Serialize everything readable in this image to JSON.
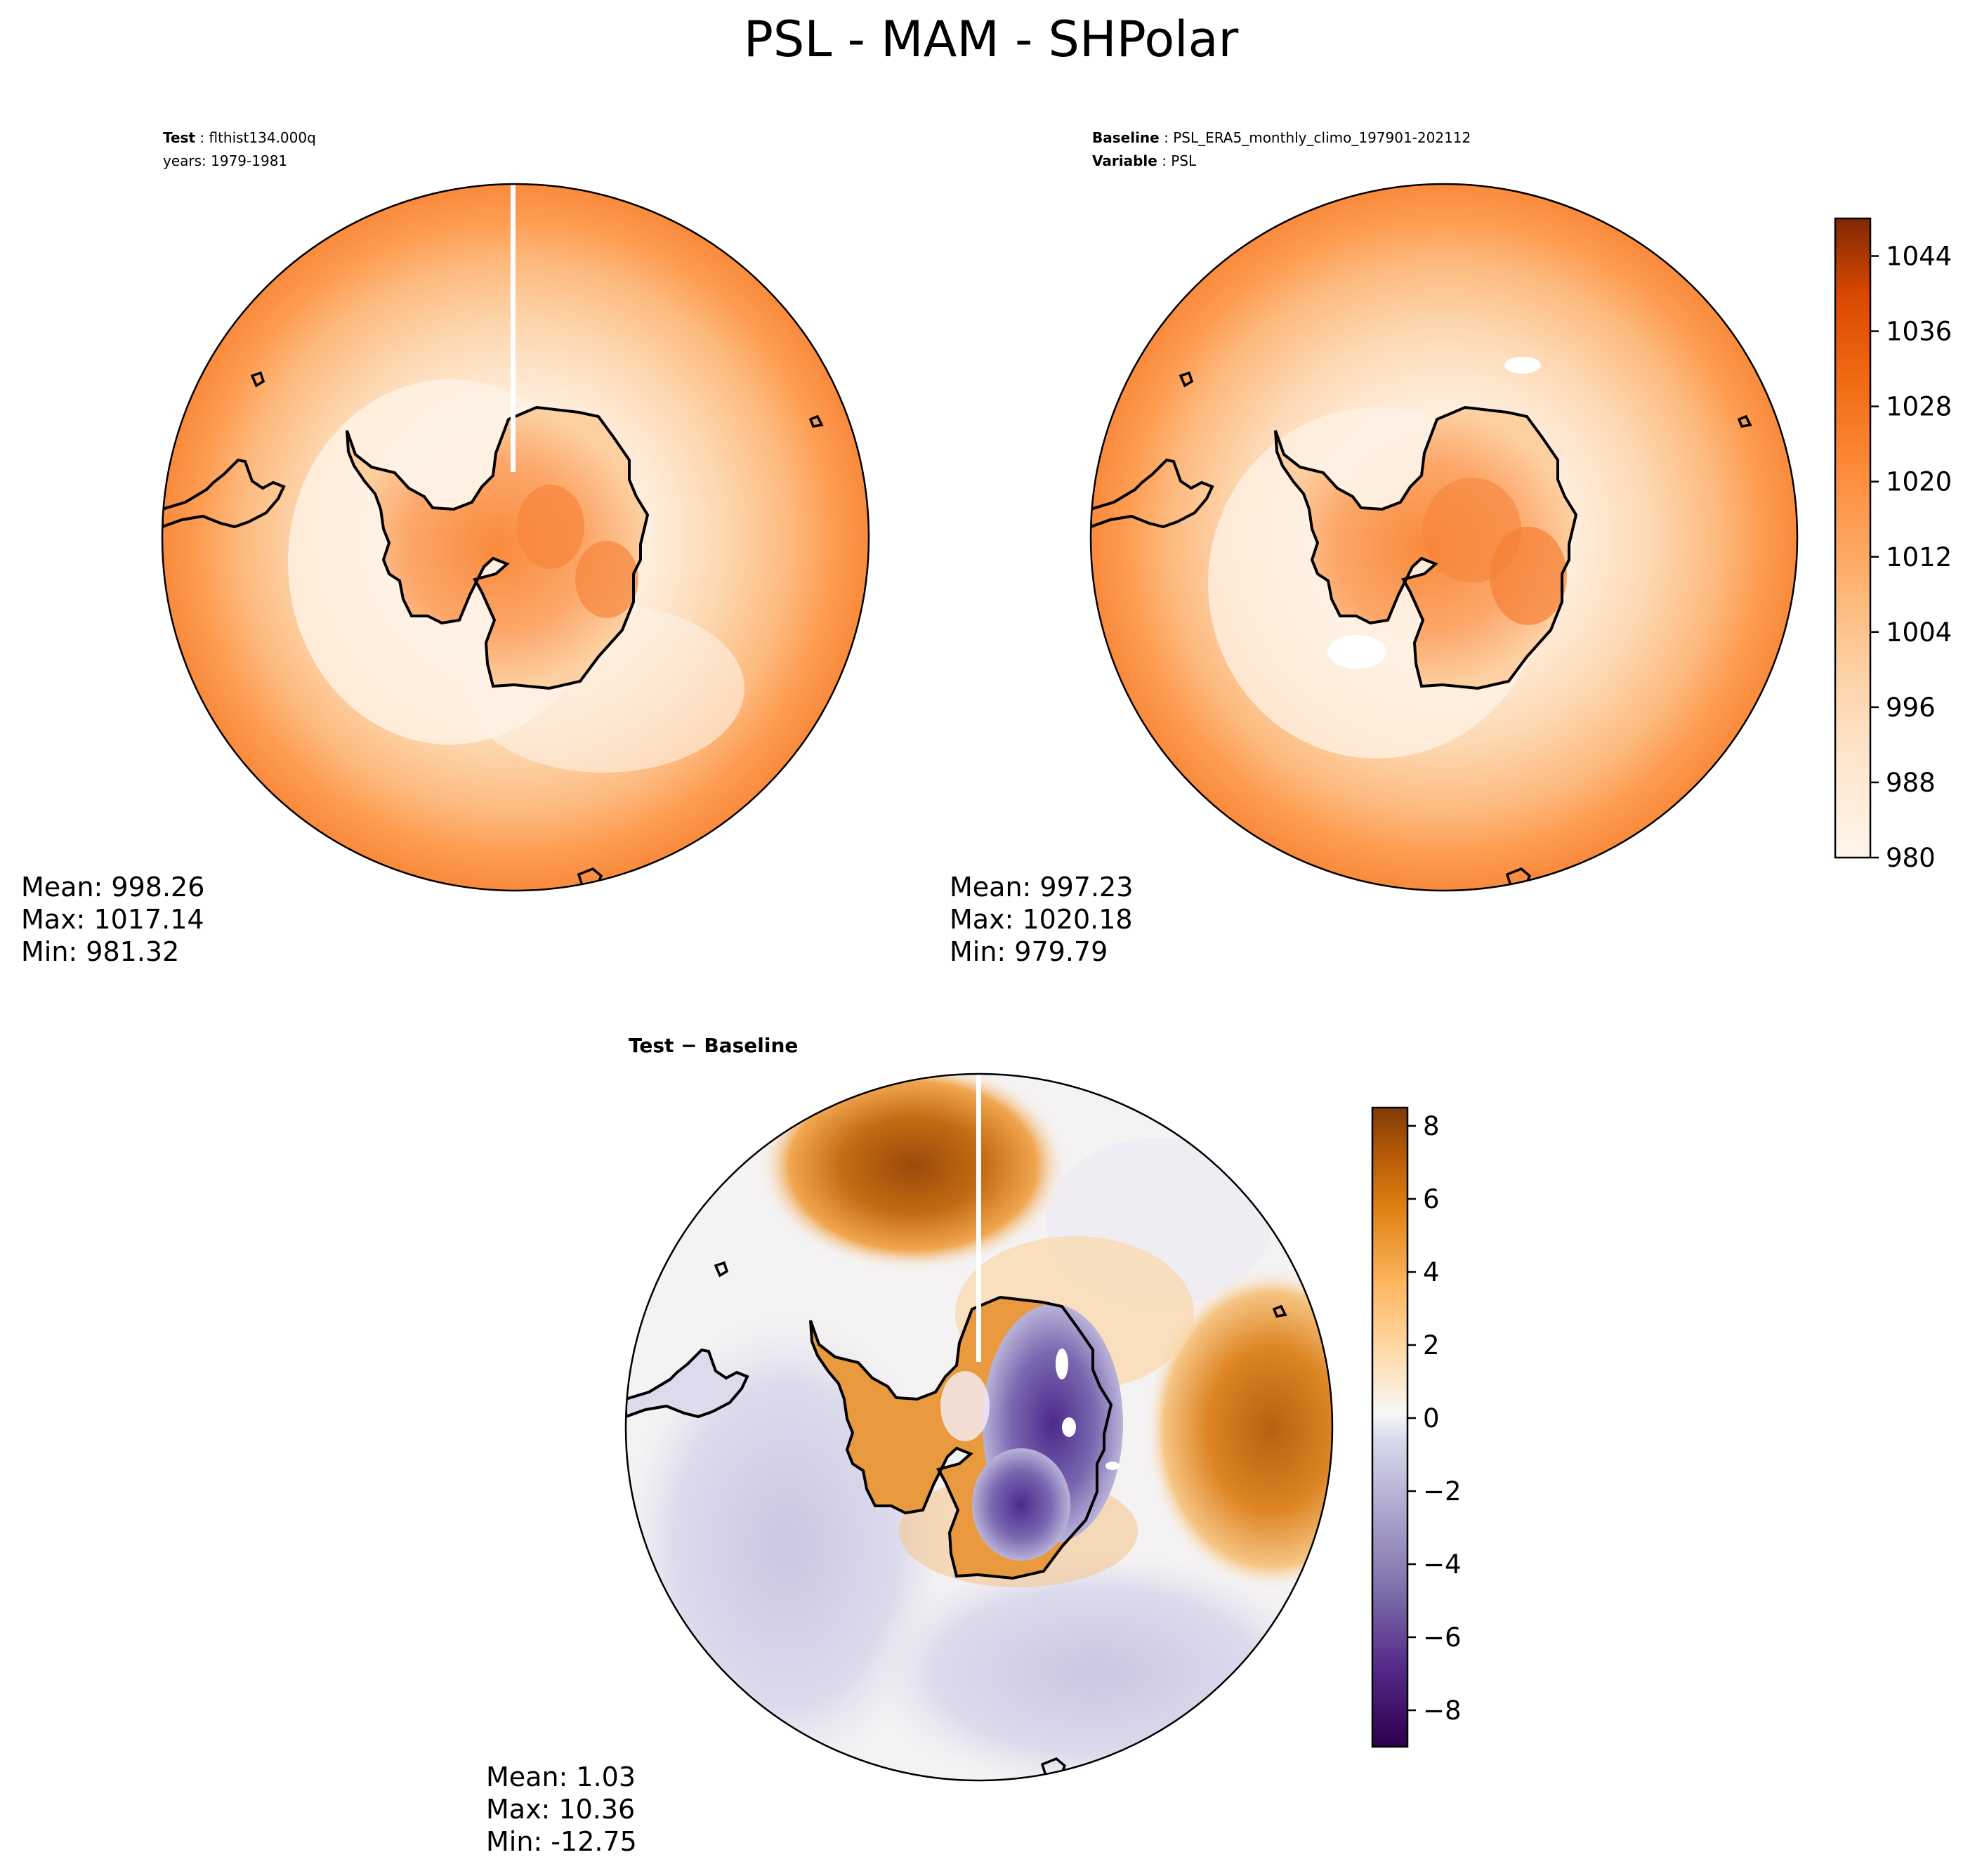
{
  "figure": {
    "title": "PSL - MAM - SHPolar"
  },
  "panels": {
    "test": {
      "label_bold": "Test",
      "label_sep": " : ",
      "label_value": "flthist134.000q",
      "line2": "years: 1979-1981",
      "stats": {
        "mean": "Mean: 998.26",
        "max": "Max: 1017.14",
        "min": "Min: 981.32"
      }
    },
    "baseline": {
      "label_bold": "Baseline",
      "label_sep": " : ",
      "label_value": "PSL_ERA5_monthly_climo_197901-202112",
      "line2_bold": "Variable",
      "line2_sep": " : ",
      "line2_value": "PSL",
      "stats": {
        "mean": "Mean: 997.23",
        "max": "Max: 1020.18",
        "min": "Min: 979.79"
      }
    },
    "diff": {
      "title": "Test − Baseline",
      "stats": {
        "mean": "Mean:  1.03",
        "max": "Max: 10.36",
        "min": "Min: -12.75"
      }
    }
  },
  "colorbars": {
    "absolute": {
      "ticks": [
        "980",
        "988",
        "996",
        "1004",
        "1012",
        "1020",
        "1028",
        "1036",
        "1044"
      ],
      "tick_values": [
        980,
        988,
        996,
        1004,
        1012,
        1020,
        1028,
        1036,
        1044
      ],
      "range": [
        980,
        1048
      ],
      "colormap": "Oranges",
      "color_low": "#fff5eb",
      "color_high": "#7f2704"
    },
    "difference": {
      "ticks": [
        "−8",
        "−6",
        "−4",
        "−2",
        "0",
        "2",
        "4",
        "6",
        "8"
      ],
      "tick_values": [
        -8,
        -6,
        -4,
        -2,
        0,
        2,
        4,
        6,
        8
      ],
      "range": [
        -9,
        8.5
      ],
      "colormap": "PuOr_r",
      "color_low": "#2d004b",
      "color_high": "#7f3b08"
    }
  },
  "chart_data": [
    {
      "type": "heatmap",
      "title": "",
      "projection": "south-polar-stereographic",
      "region": "SHPolar",
      "variable": "PSL",
      "season": "MAM",
      "case": "flthist134.000q",
      "years": "1979-1981",
      "mean": 998.26,
      "max": 1017.14,
      "min": 981.32,
      "levels": [
        980,
        984,
        988,
        992,
        996,
        1000,
        1004,
        1008,
        1012,
        1016,
        1020,
        1024,
        1028,
        1032,
        1036,
        1040,
        1044,
        1048
      ]
    },
    {
      "type": "heatmap",
      "title": "",
      "projection": "south-polar-stereographic",
      "region": "SHPolar",
      "variable": "PSL",
      "case": "PSL_ERA5_monthly_climo_197901-202112",
      "mean": 997.23,
      "max": 1020.18,
      "min": 979.79,
      "levels": [
        980,
        984,
        988,
        992,
        996,
        1000,
        1004,
        1008,
        1012,
        1016,
        1020,
        1024,
        1028,
        1032,
        1036,
        1040,
        1044,
        1048
      ]
    },
    {
      "type": "heatmap",
      "title": "Test − Baseline",
      "projection": "south-polar-stereographic",
      "region": "SHPolar",
      "mean": 1.03,
      "max": 10.36,
      "min": -12.75,
      "levels": [
        -9,
        -8,
        -7,
        -6,
        -5,
        -4,
        -3,
        -2,
        -1,
        0,
        1,
        2,
        3,
        4,
        5,
        6,
        7,
        8
      ]
    }
  ]
}
